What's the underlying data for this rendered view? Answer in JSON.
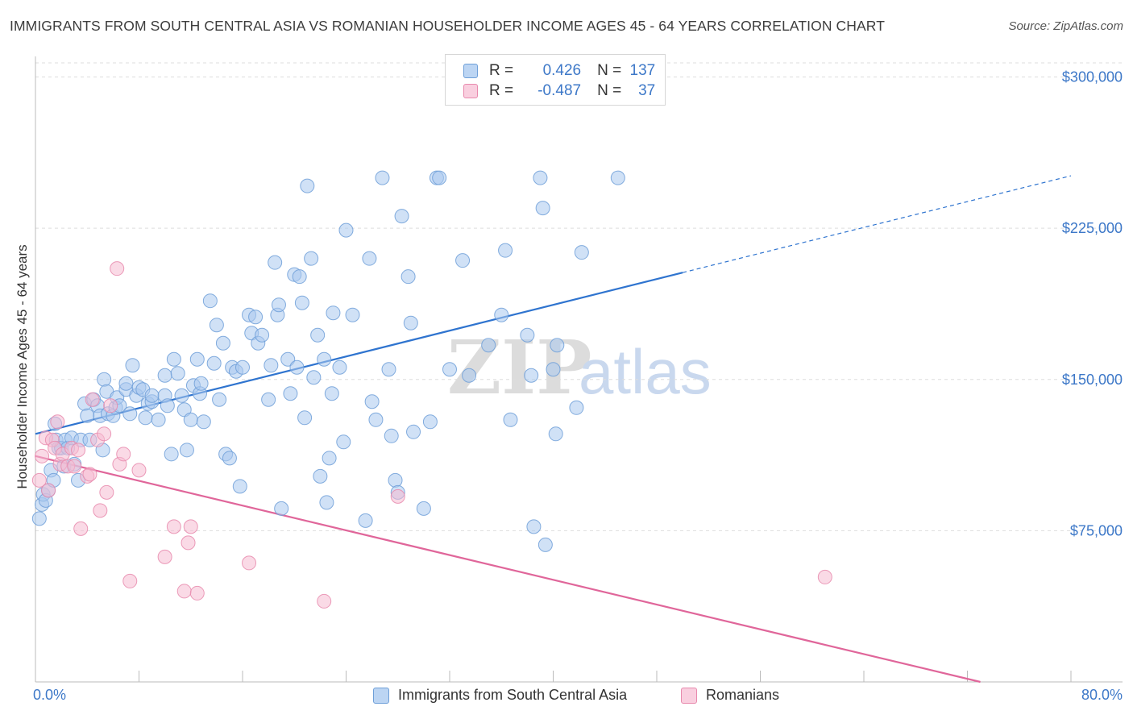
{
  "header": {
    "title": "IMMIGRANTS FROM SOUTH CENTRAL ASIA VS ROMANIAN HOUSEHOLDER INCOME AGES 45 - 64 YEARS CORRELATION CHART",
    "source": "Source: ZipAtlas.com"
  },
  "legend": {
    "r_label": "R =",
    "n_label": "N =",
    "rows": [
      {
        "r": "0.426",
        "n": "137"
      },
      {
        "r": "-0.487",
        "n": "37"
      }
    ]
  },
  "colors": {
    "blue_fill": "#a9c8ee",
    "blue_stroke": "#6e9fd8",
    "blue_line": "#2f74cf",
    "pink_fill": "#f6bcd2",
    "pink_stroke": "#e889ad",
    "pink_line": "#e0669a",
    "axis_text": "#3d78c8",
    "grid": "#dddddd"
  },
  "watermark": {
    "zip": "ZIP",
    "atlas": "atlas"
  },
  "chart_data": {
    "type": "scatter",
    "title": "IMMIGRANTS FROM SOUTH CENTRAL ASIA VS ROMANIAN HOUSEHOLDER INCOME AGES 45 - 64 YEARS CORRELATION CHART",
    "xlabel": "",
    "ylabel": "Householder Income Ages 45 - 64 years",
    "xlim": [
      0,
      80
    ],
    "ylim": [
      0,
      315000
    ],
    "x_tick_labels": [
      "0.0%",
      "80.0%"
    ],
    "y_ticks": [
      75000,
      150000,
      225000,
      300000
    ],
    "y_tick_labels": [
      "$75,000",
      "$150,000",
      "$225,000",
      "$300,000"
    ],
    "grid": true,
    "legend_position": "top-center",
    "series": [
      {
        "name": "Immigrants from South Central Asia",
        "r": 0.426,
        "n": 137,
        "trend": {
          "x0": 0,
          "y0": 123000,
          "x1": 50,
          "y1": 203000,
          "dashed_to_x": 80,
          "dashed_to_y": 251000
        },
        "points": [
          [
            0.3,
            81000
          ],
          [
            0.5,
            88000
          ],
          [
            0.6,
            93000
          ],
          [
            0.8,
            90000
          ],
          [
            1.0,
            95000
          ],
          [
            1.2,
            105000
          ],
          [
            1.4,
            100000
          ],
          [
            1.5,
            128000
          ],
          [
            1.6,
            120000
          ],
          [
            1.8,
            116000
          ],
          [
            2.0,
            116000
          ],
          [
            2.2,
            107000
          ],
          [
            2.3,
            120000
          ],
          [
            2.5,
            116000
          ],
          [
            2.8,
            121000
          ],
          [
            3.3,
            100000
          ],
          [
            3.0,
            108000
          ],
          [
            3.5,
            120000
          ],
          [
            3.8,
            138000
          ],
          [
            4.0,
            132000
          ],
          [
            4.2,
            120000
          ],
          [
            4.5,
            140000
          ],
          [
            4.8,
            137000
          ],
          [
            5.0,
            132000
          ],
          [
            5.2,
            115000
          ],
          [
            5.3,
            150000
          ],
          [
            5.5,
            144000
          ],
          [
            5.6,
            133000
          ],
          [
            6.0,
            132000
          ],
          [
            6.2,
            136000
          ],
          [
            6.3,
            141000
          ],
          [
            6.5,
            137000
          ],
          [
            7.0,
            145000
          ],
          [
            7.0,
            148000
          ],
          [
            7.3,
            133000
          ],
          [
            7.5,
            157000
          ],
          [
            7.8,
            142000
          ],
          [
            8.0,
            146000
          ],
          [
            8.3,
            145000
          ],
          [
            8.5,
            131000
          ],
          [
            8.7,
            138000
          ],
          [
            9.0,
            139000
          ],
          [
            9.0,
            142000
          ],
          [
            9.5,
            130000
          ],
          [
            10.0,
            152000
          ],
          [
            10.0,
            142000
          ],
          [
            10.2,
            137000
          ],
          [
            10.5,
            113000
          ],
          [
            10.7,
            160000
          ],
          [
            11.0,
            153000
          ],
          [
            11.3,
            142000
          ],
          [
            11.5,
            135000
          ],
          [
            11.7,
            115000
          ],
          [
            12.0,
            130000
          ],
          [
            12.2,
            147000
          ],
          [
            12.5,
            160000
          ],
          [
            12.7,
            143000
          ],
          [
            12.8,
            148000
          ],
          [
            13.0,
            129000
          ],
          [
            13.5,
            189000
          ],
          [
            13.8,
            158000
          ],
          [
            14.0,
            177000
          ],
          [
            14.2,
            140000
          ],
          [
            14.5,
            168000
          ],
          [
            14.7,
            113000
          ],
          [
            15.0,
            111000
          ],
          [
            15.2,
            156000
          ],
          [
            15.5,
            154000
          ],
          [
            15.8,
            97000
          ],
          [
            16.0,
            156000
          ],
          [
            16.5,
            182000
          ],
          [
            16.7,
            173000
          ],
          [
            17.0,
            181000
          ],
          [
            17.2,
            168000
          ],
          [
            17.5,
            172000
          ],
          [
            18.0,
            140000
          ],
          [
            18.2,
            157000
          ],
          [
            18.5,
            208000
          ],
          [
            18.7,
            182000
          ],
          [
            18.8,
            187000
          ],
          [
            19.0,
            86000
          ],
          [
            19.5,
            160000
          ],
          [
            19.7,
            143000
          ],
          [
            20.0,
            202000
          ],
          [
            20.2,
            156000
          ],
          [
            20.4,
            201000
          ],
          [
            20.6,
            188000
          ],
          [
            20.8,
            131000
          ],
          [
            21.0,
            246000
          ],
          [
            21.3,
            210000
          ],
          [
            21.5,
            151000
          ],
          [
            21.8,
            172000
          ],
          [
            22.0,
            102000
          ],
          [
            22.3,
            160000
          ],
          [
            22.5,
            89000
          ],
          [
            22.7,
            111000
          ],
          [
            22.9,
            143000
          ],
          [
            23.0,
            183000
          ],
          [
            23.5,
            156000
          ],
          [
            23.8,
            119000
          ],
          [
            24.0,
            224000
          ],
          [
            24.5,
            182000
          ],
          [
            25.5,
            80000
          ],
          [
            25.8,
            210000
          ],
          [
            26.0,
            139000
          ],
          [
            26.3,
            130000
          ],
          [
            26.8,
            250000
          ],
          [
            27.3,
            155000
          ],
          [
            27.5,
            122000
          ],
          [
            27.8,
            100000
          ],
          [
            28.0,
            94000
          ],
          [
            28.3,
            231000
          ],
          [
            28.8,
            201000
          ],
          [
            29.0,
            178000
          ],
          [
            29.2,
            124000
          ],
          [
            30.0,
            86000
          ],
          [
            30.5,
            129000
          ],
          [
            31.0,
            250000
          ],
          [
            31.2,
            250000
          ],
          [
            32.0,
            155000
          ],
          [
            33.0,
            209000
          ],
          [
            33.5,
            152000
          ],
          [
            35.0,
            167000
          ],
          [
            36.0,
            182000
          ],
          [
            36.3,
            214000
          ],
          [
            36.7,
            130000
          ],
          [
            38.0,
            172000
          ],
          [
            38.3,
            152000
          ],
          [
            38.5,
            77000
          ],
          [
            39.0,
            250000
          ],
          [
            39.2,
            235000
          ],
          [
            39.4,
            68000
          ],
          [
            40.0,
            155000
          ],
          [
            40.3,
            167000
          ],
          [
            40.2,
            123000
          ],
          [
            41.8,
            136000
          ],
          [
            42.2,
            213000
          ],
          [
            45.0,
            250000
          ]
        ]
      },
      {
        "name": "Romanians",
        "r": -0.487,
        "n": 37,
        "trend": {
          "x0": 0,
          "y0": 112000,
          "x1": 73,
          "y1": 0
        },
        "points": [
          [
            0.3,
            100000
          ],
          [
            0.5,
            112000
          ],
          [
            0.8,
            121000
          ],
          [
            1.0,
            95000
          ],
          [
            1.3,
            120000
          ],
          [
            1.5,
            116000
          ],
          [
            1.7,
            129000
          ],
          [
            1.9,
            108000
          ],
          [
            2.1,
            113000
          ],
          [
            2.5,
            107000
          ],
          [
            2.8,
            116000
          ],
          [
            3.0,
            107000
          ],
          [
            3.3,
            115000
          ],
          [
            3.5,
            76000
          ],
          [
            4.0,
            102000
          ],
          [
            4.2,
            103000
          ],
          [
            4.4,
            140000
          ],
          [
            4.8,
            120000
          ],
          [
            5.0,
            85000
          ],
          [
            5.3,
            123000
          ],
          [
            5.5,
            94000
          ],
          [
            5.8,
            137000
          ],
          [
            6.3,
            205000
          ],
          [
            6.5,
            108000
          ],
          [
            6.8,
            113000
          ],
          [
            7.3,
            50000
          ],
          [
            8.0,
            105000
          ],
          [
            10.0,
            62000
          ],
          [
            10.7,
            77000
          ],
          [
            11.5,
            45000
          ],
          [
            11.8,
            69000
          ],
          [
            12.0,
            77000
          ],
          [
            12.5,
            44000
          ],
          [
            16.5,
            59000
          ],
          [
            22.3,
            40000
          ],
          [
            28.0,
            92000
          ],
          [
            61.0,
            52000
          ]
        ]
      }
    ]
  }
}
